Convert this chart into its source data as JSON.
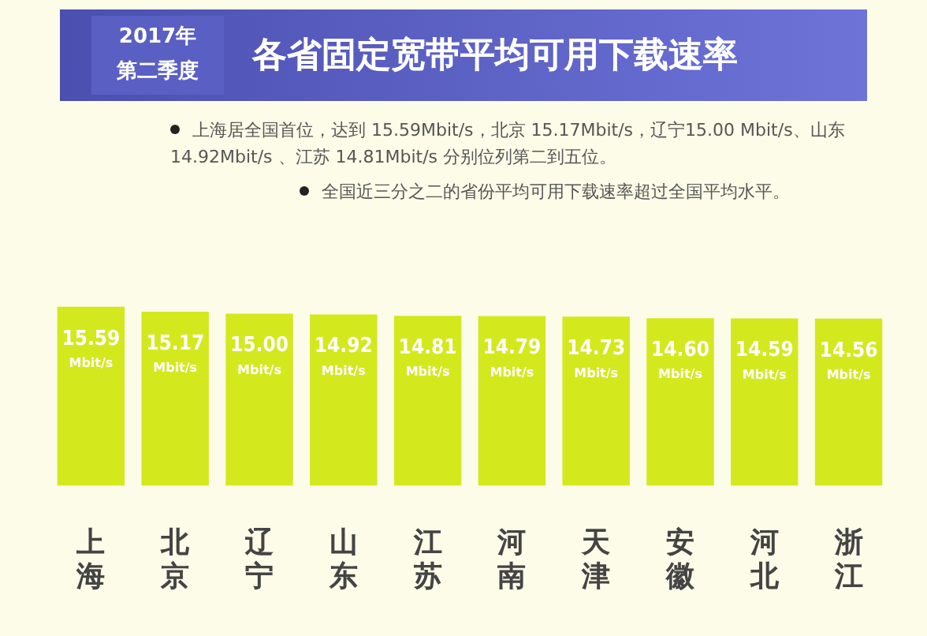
{
  "chart_data": {
    "type": "bar",
    "title": "各省固定宽带平均可用下载速率",
    "subtitle": "2017年第二季度",
    "annotations": [
      "上海居全国首位，达到 15.59Mbit/s，北京 15.17Mbit/s，辽宁15.00 Mbit/s、山东 14.92Mbit/s 、江苏 14.81Mbit/s 分别位列第二到五位。",
      "全国近三分之二的省份平均可用下载速率超过全国平均水平。"
    ],
    "categories": [
      "上海",
      "北京",
      "辽宁",
      "山东",
      "江苏",
      "河南",
      "天津",
      "安徽",
      "河北",
      "浙江"
    ],
    "values": [
      15.59,
      15.17,
      15.0,
      14.92,
      14.81,
      14.79,
      14.73,
      14.6,
      14.59,
      14.56
    ],
    "value_labels": [
      "15.59 Mbit/s",
      "15.17 Mbit/s",
      "15.00 Mbit/s",
      "14.92 Mbit/s",
      "14.81 Mbit/s",
      "14.79 Mbit/s",
      "14.73 Mbit/s",
      "14.60 Mbit/s",
      "14.59 Mbit/s",
      "14.56 Mbit/s"
    ],
    "color": "#d4e81e",
    "tick_labels": "x",
    "grid": false,
    "legend": false
  }
}
